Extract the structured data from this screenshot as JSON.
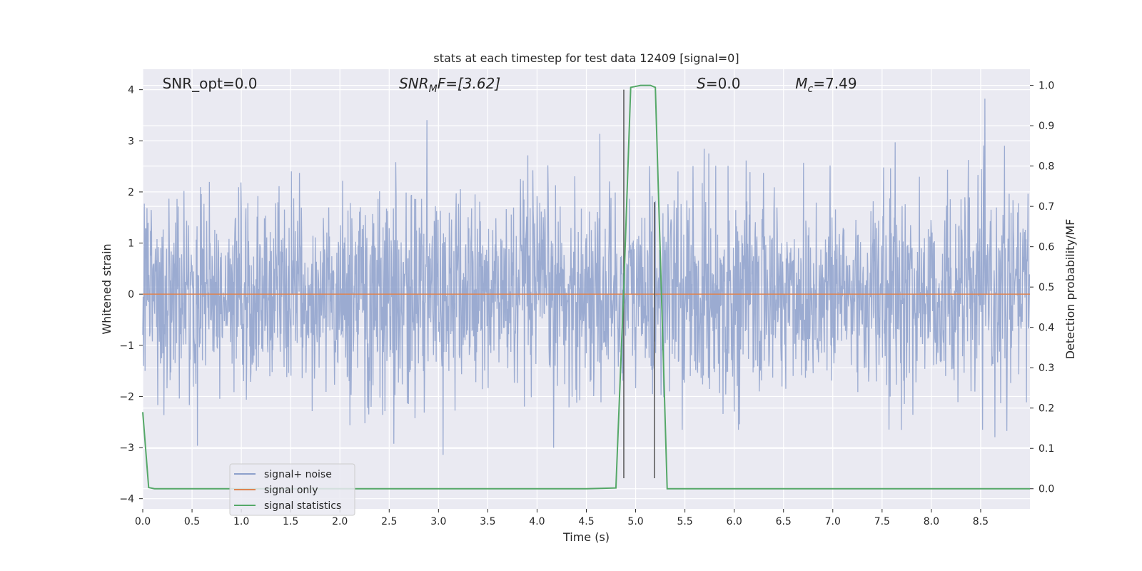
{
  "chart_data": {
    "type": "line",
    "title": "stats at each timestep for test data 12409 [signal=0]",
    "xlabel": "Time (s)",
    "ylabel": "Whitened strain",
    "ylabel_right": "Detection probability/MF",
    "xlim": [
      0.0,
      9.0
    ],
    "ylim": [
      -4.2,
      4.4
    ],
    "ylim_right": [
      -0.05,
      1.04
    ],
    "x_ticks": [
      "0.0",
      "0.5",
      "1.0",
      "1.5",
      "2.0",
      "2.5",
      "3.0",
      "3.5",
      "4.0",
      "4.5",
      "5.0",
      "5.5",
      "6.0",
      "6.5",
      "7.0",
      "7.5",
      "8.0",
      "8.5"
    ],
    "y_ticks_left": [
      "−4",
      "−3",
      "−2",
      "−1",
      "0",
      "1",
      "2",
      "3",
      "4"
    ],
    "y_ticks_right": [
      "0.0",
      "0.1",
      "0.2",
      "0.3",
      "0.4",
      "0.5",
      "0.6",
      "0.7",
      "0.8",
      "0.9",
      "1.0"
    ],
    "grid": true,
    "legend_position": "lower-left",
    "annotations": [
      {
        "prefix": "SNR_opt",
        "sub": "",
        "suffix": "=0.0",
        "italic": false,
        "x": 0.2
      },
      {
        "prefix": "SNR",
        "sub": "M",
        "suffix": "F=[3.62]",
        "italic": true,
        "x": 2.6
      },
      {
        "prefix": "S",
        "sub": "",
        "suffix": "=0.0",
        "italic": true,
        "x": 5.62
      },
      {
        "prefix": "M",
        "sub": "c",
        "suffix": "=7.49",
        "italic": true,
        "x": 6.62
      }
    ],
    "series": [
      {
        "name": "signal+ noise",
        "color": "#8da0cb",
        "description": "noisy whitened strain, roughly Gaussian noise with amplitude peaks near ±3",
        "sample_rate": 256,
        "noise_sigma": 1.0
      },
      {
        "name": "signal only",
        "color": "#dd8452",
        "x": [
          0.0,
          9.0
        ],
        "y": [
          0.0,
          0.0
        ]
      },
      {
        "name": "signal statistics",
        "color": "#55a868",
        "axis": "right",
        "x": [
          0.0,
          0.06,
          0.12,
          0.5,
          1.0,
          2.0,
          3.0,
          4.0,
          4.5,
          4.8,
          4.88,
          4.95,
          5.05,
          5.15,
          5.2,
          5.32,
          5.5,
          6.0,
          7.0,
          8.0,
          9.0
        ],
        "y": [
          0.19,
          0.003,
          0.0,
          0.0,
          0.0,
          0.0,
          0.0,
          0.0,
          0.0,
          0.002,
          0.5,
          0.995,
          1.0,
          1.0,
          0.995,
          0.0,
          0.0,
          0.0,
          0.0,
          0.0,
          0.0
        ]
      }
    ],
    "vertical_lines": [
      {
        "x": 4.88,
        "y_range": [
          -3.6,
          4.0
        ],
        "color": "#555555"
      },
      {
        "x": 5.19,
        "y_range": [
          -3.6,
          1.8
        ],
        "color": "#555555"
      }
    ]
  }
}
